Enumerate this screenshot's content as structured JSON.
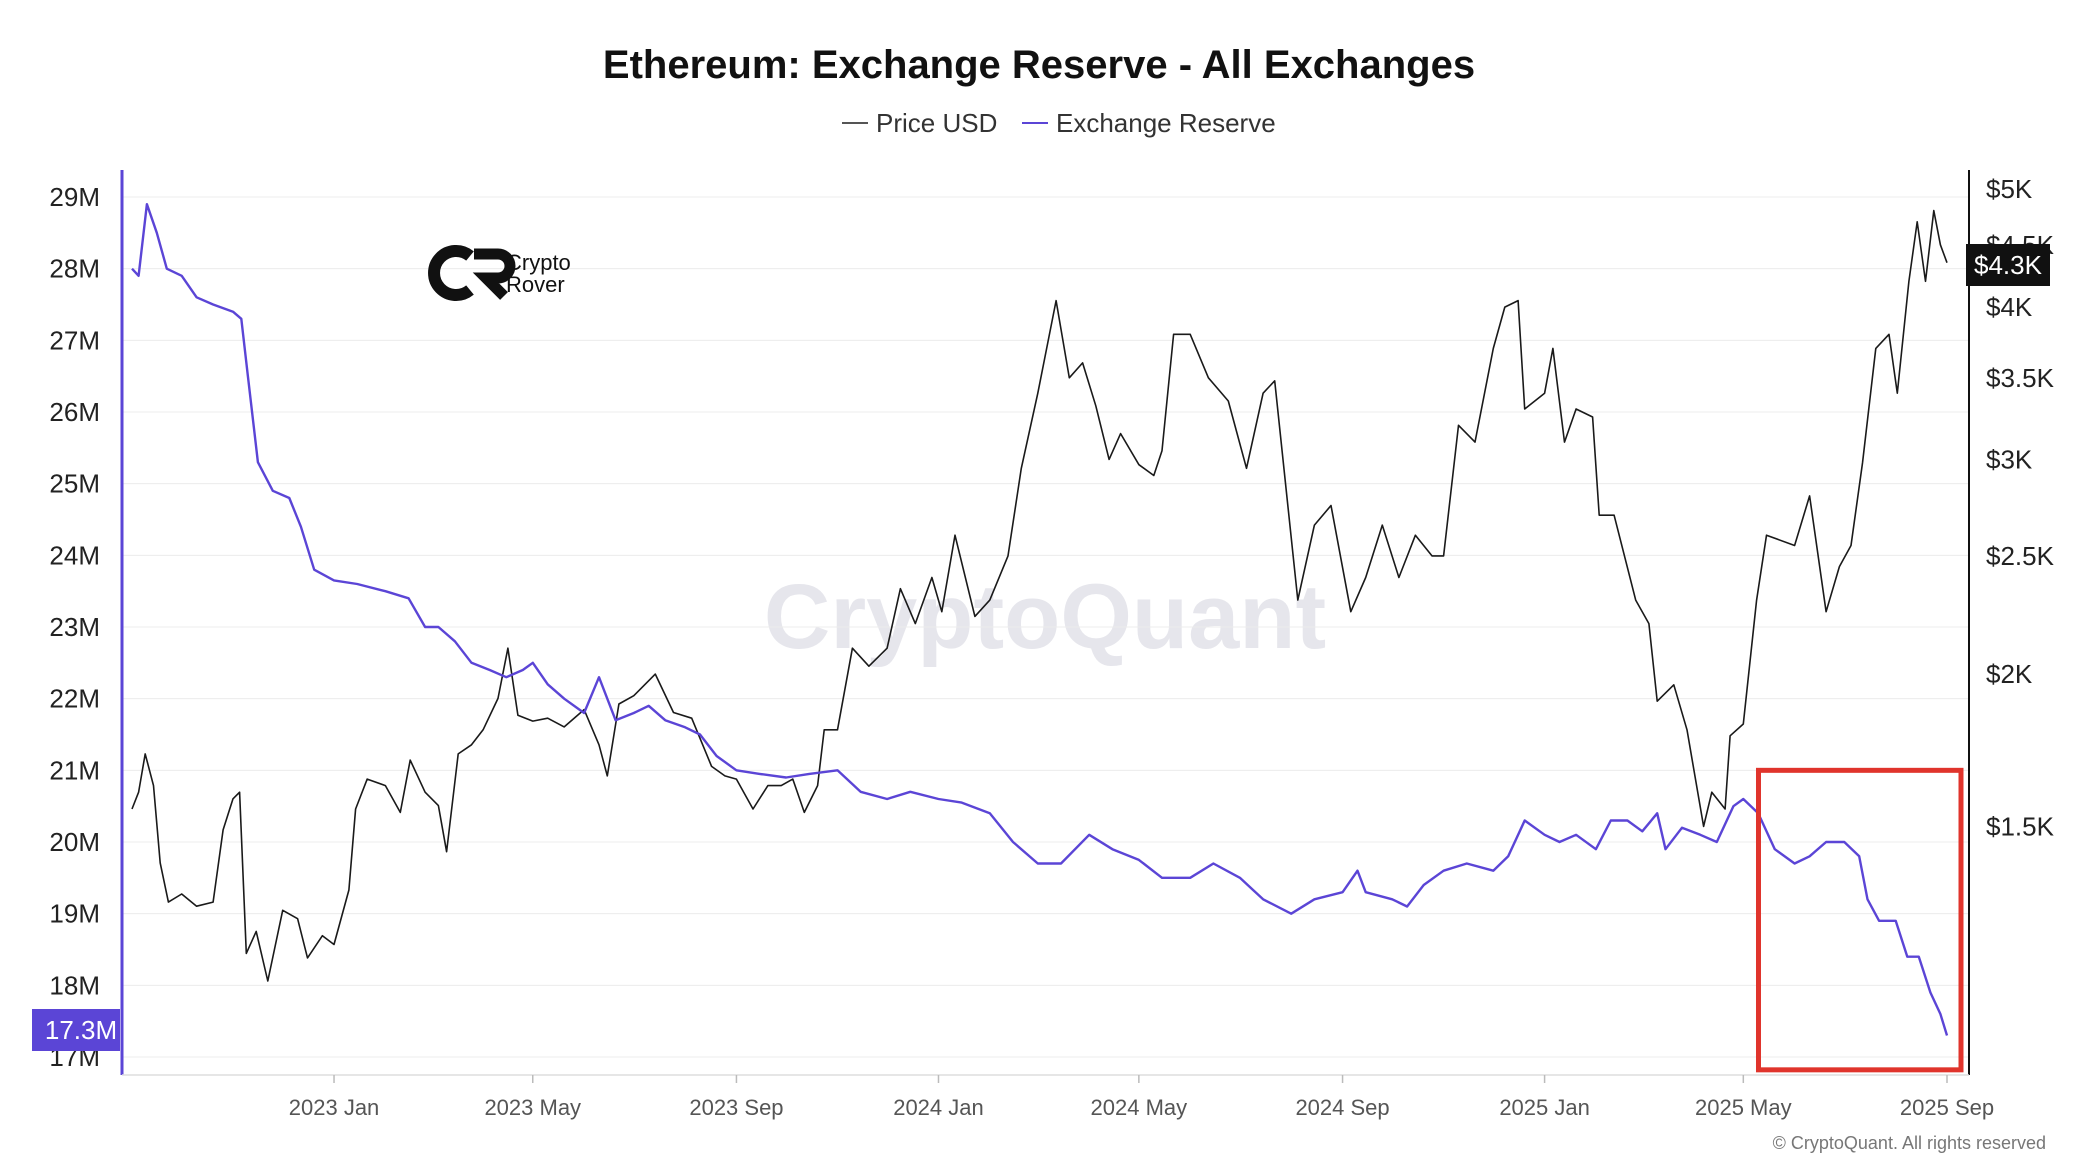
{
  "watermark": "CryptoQuant",
  "logo": {
    "line1": "Crypto",
    "line2": "Rover"
  },
  "copyright": "© CryptoQuant. All rights reserved",
  "colors": {
    "price": "#1a1a1a",
    "reserve": "#5b45d6",
    "highlight_box": "#e0342c",
    "grid": "#ececec",
    "badge_reserve": "#5b45d6",
    "badge_price": "#111111"
  },
  "chart_data": {
    "type": "line",
    "title": "Ethereum: Exchange Reserve - All Exchanges",
    "legend": {
      "placement": "top-center",
      "entries": [
        "Price USD",
        "Exchange Reserve"
      ]
    },
    "x": {
      "start": "2022-09-01",
      "end": "2025-09-01",
      "ticks": [
        "2023 Jan",
        "2023 May",
        "2023 Sep",
        "2024 Jan",
        "2024 May",
        "2024 Sep",
        "2025 Jan",
        "2025 May",
        "2025 Sep"
      ],
      "tick_dates": [
        "2023-01-01",
        "2023-05-01",
        "2023-09-01",
        "2024-01-01",
        "2024-05-01",
        "2024-09-01",
        "2025-01-01",
        "2025-05-01",
        "2025-09-01"
      ]
    },
    "y_left": {
      "label": "",
      "ylim": [
        17000000,
        29000000
      ],
      "ticks": [
        "17M",
        "18M",
        "19M",
        "20M",
        "21M",
        "22M",
        "23M",
        "24M",
        "25M",
        "26M",
        "27M",
        "28M",
        "29M"
      ],
      "tick_values": [
        17000000,
        18000000,
        19000000,
        20000000,
        21000000,
        22000000,
        23000000,
        24000000,
        25000000,
        26000000,
        27000000,
        28000000,
        29000000
      ]
    },
    "y_right": {
      "label": "",
      "scale": "log",
      "ylim": [
        1000,
        5000
      ],
      "ticks": [
        "$1.5K",
        "$2K",
        "$2.5K",
        "$3K",
        "$3.5K",
        "$4K",
        "$4.5K",
        "$5K"
      ],
      "tick_values": [
        1500,
        2000,
        2500,
        3000,
        3500,
        4000,
        4500,
        5000
      ]
    },
    "grid": true,
    "last_values": {
      "reserve": "17.3M",
      "price": "$4.3K"
    },
    "annotation": {
      "type": "highlight-rectangle",
      "x_range": [
        "2025-05-15",
        "2025-09-01"
      ],
      "y_range": [
        17100000,
        21000000
      ]
    },
    "series": [
      {
        "name": "Price USD",
        "axis": "right",
        "points": [
          [
            "2022-09-01",
            1550
          ],
          [
            "2022-09-05",
            1600
          ],
          [
            "2022-09-09",
            1720
          ],
          [
            "2022-09-14",
            1620
          ],
          [
            "2022-09-18",
            1400
          ],
          [
            "2022-09-23",
            1300
          ],
          [
            "2022-10-01",
            1320
          ],
          [
            "2022-10-10",
            1290
          ],
          [
            "2022-10-20",
            1300
          ],
          [
            "2022-10-26",
            1490
          ],
          [
            "2022-11-01",
            1580
          ],
          [
            "2022-11-05",
            1600
          ],
          [
            "2022-11-09",
            1180
          ],
          [
            "2022-11-15",
            1230
          ],
          [
            "2022-11-22",
            1120
          ],
          [
            "2022-12-01",
            1280
          ],
          [
            "2022-12-10",
            1260
          ],
          [
            "2022-12-16",
            1170
          ],
          [
            "2022-12-25",
            1220
          ],
          [
            "2023-01-01",
            1200
          ],
          [
            "2023-01-10",
            1330
          ],
          [
            "2023-01-14",
            1550
          ],
          [
            "2023-01-21",
            1640
          ],
          [
            "2023-02-01",
            1620
          ],
          [
            "2023-02-10",
            1540
          ],
          [
            "2023-02-16",
            1700
          ],
          [
            "2023-02-25",
            1600
          ],
          [
            "2023-03-05",
            1560
          ],
          [
            "2023-03-10",
            1430
          ],
          [
            "2023-03-17",
            1720
          ],
          [
            "2023-03-25",
            1750
          ],
          [
            "2023-04-01",
            1800
          ],
          [
            "2023-04-10",
            1910
          ],
          [
            "2023-04-16",
            2100
          ],
          [
            "2023-04-22",
            1850
          ],
          [
            "2023-05-01",
            1830
          ],
          [
            "2023-05-10",
            1840
          ],
          [
            "2023-05-20",
            1810
          ],
          [
            "2023-06-01",
            1870
          ],
          [
            "2023-06-10",
            1750
          ],
          [
            "2023-06-15",
            1650
          ],
          [
            "2023-06-22",
            1890
          ],
          [
            "2023-07-01",
            1920
          ],
          [
            "2023-07-14",
            2000
          ],
          [
            "2023-07-25",
            1860
          ],
          [
            "2023-08-05",
            1840
          ],
          [
            "2023-08-17",
            1680
          ],
          [
            "2023-08-25",
            1650
          ],
          [
            "2023-09-01",
            1640
          ],
          [
            "2023-09-11",
            1550
          ],
          [
            "2023-09-20",
            1620
          ],
          [
            "2023-09-28",
            1620
          ],
          [
            "2023-10-05",
            1640
          ],
          [
            "2023-10-12",
            1540
          ],
          [
            "2023-10-20",
            1620
          ],
          [
            "2023-10-24",
            1800
          ],
          [
            "2023-11-01",
            1800
          ],
          [
            "2023-11-10",
            2100
          ],
          [
            "2023-11-20",
            2030
          ],
          [
            "2023-12-01",
            2100
          ],
          [
            "2023-12-09",
            2350
          ],
          [
            "2023-12-18",
            2200
          ],
          [
            "2023-12-28",
            2400
          ],
          [
            "2024-01-03",
            2250
          ],
          [
            "2024-01-11",
            2600
          ],
          [
            "2024-01-23",
            2230
          ],
          [
            "2024-02-01",
            2300
          ],
          [
            "2024-02-12",
            2500
          ],
          [
            "2024-02-20",
            2950
          ],
          [
            "2024-03-01",
            3400
          ],
          [
            "2024-03-12",
            4050
          ],
          [
            "2024-03-20",
            3500
          ],
          [
            "2024-03-28",
            3600
          ],
          [
            "2024-04-05",
            3320
          ],
          [
            "2024-04-13",
            3000
          ],
          [
            "2024-04-20",
            3150
          ],
          [
            "2024-05-01",
            2970
          ],
          [
            "2024-05-10",
            2910
          ],
          [
            "2024-05-15",
            3050
          ],
          [
            "2024-05-22",
            3800
          ],
          [
            "2024-06-01",
            3800
          ],
          [
            "2024-06-12",
            3500
          ],
          [
            "2024-06-24",
            3350
          ],
          [
            "2024-07-05",
            2950
          ],
          [
            "2024-07-15",
            3400
          ],
          [
            "2024-07-22",
            3480
          ],
          [
            "2024-08-05",
            2300
          ],
          [
            "2024-08-15",
            2650
          ],
          [
            "2024-08-25",
            2750
          ],
          [
            "2024-09-06",
            2250
          ],
          [
            "2024-09-15",
            2400
          ],
          [
            "2024-09-25",
            2650
          ],
          [
            "2024-10-05",
            2400
          ],
          [
            "2024-10-15",
            2600
          ],
          [
            "2024-10-25",
            2500
          ],
          [
            "2024-11-01",
            2500
          ],
          [
            "2024-11-10",
            3200
          ],
          [
            "2024-11-20",
            3100
          ],
          [
            "2024-12-01",
            3700
          ],
          [
            "2024-12-08",
            4000
          ],
          [
            "2024-12-16",
            4050
          ],
          [
            "2024-12-20",
            3300
          ],
          [
            "2025-01-01",
            3400
          ],
          [
            "2025-01-06",
            3700
          ],
          [
            "2025-01-13",
            3100
          ],
          [
            "2025-01-20",
            3300
          ],
          [
            "2025-01-30",
            3250
          ],
          [
            "2025-02-03",
            2700
          ],
          [
            "2025-02-12",
            2700
          ],
          [
            "2025-02-25",
            2300
          ],
          [
            "2025-03-05",
            2200
          ],
          [
            "2025-03-10",
            1900
          ],
          [
            "2025-03-20",
            1960
          ],
          [
            "2025-03-28",
            1800
          ],
          [
            "2025-04-07",
            1500
          ],
          [
            "2025-04-12",
            1600
          ],
          [
            "2025-04-20",
            1550
          ],
          [
            "2025-04-23",
            1780
          ],
          [
            "2025-05-01",
            1820
          ],
          [
            "2025-05-09",
            2300
          ],
          [
            "2025-05-15",
            2600
          ],
          [
            "2025-06-01",
            2550
          ],
          [
            "2025-06-10",
            2800
          ],
          [
            "2025-06-20",
            2250
          ],
          [
            "2025-06-28",
            2450
          ],
          [
            "2025-07-05",
            2550
          ],
          [
            "2025-07-12",
            2980
          ],
          [
            "2025-07-20",
            3700
          ],
          [
            "2025-07-28",
            3800
          ],
          [
            "2025-08-02",
            3400
          ],
          [
            "2025-08-09",
            4200
          ],
          [
            "2025-08-14",
            4700
          ],
          [
            "2025-08-19",
            4200
          ],
          [
            "2025-08-24",
            4800
          ],
          [
            "2025-08-28",
            4500
          ],
          [
            "2025-09-01",
            4350
          ]
        ]
      },
      {
        "name": "Exchange Reserve",
        "axis": "left",
        "points": [
          [
            "2022-09-01",
            28000000
          ],
          [
            "2022-09-05",
            27900000
          ],
          [
            "2022-09-10",
            28900000
          ],
          [
            "2022-09-16",
            28500000
          ],
          [
            "2022-09-22",
            28000000
          ],
          [
            "2022-10-01",
            27900000
          ],
          [
            "2022-10-10",
            27600000
          ],
          [
            "2022-10-20",
            27500000
          ],
          [
            "2022-11-01",
            27400000
          ],
          [
            "2022-11-06",
            27300000
          ],
          [
            "2022-11-10",
            26500000
          ],
          [
            "2022-11-16",
            25300000
          ],
          [
            "2022-11-25",
            24900000
          ],
          [
            "2022-12-05",
            24800000
          ],
          [
            "2022-12-12",
            24400000
          ],
          [
            "2022-12-20",
            23800000
          ],
          [
            "2023-01-01",
            23650000
          ],
          [
            "2023-01-15",
            23600000
          ],
          [
            "2023-02-01",
            23500000
          ],
          [
            "2023-02-15",
            23400000
          ],
          [
            "2023-02-25",
            23000000
          ],
          [
            "2023-03-05",
            23000000
          ],
          [
            "2023-03-15",
            22800000
          ],
          [
            "2023-03-25",
            22500000
          ],
          [
            "2023-04-05",
            22400000
          ],
          [
            "2023-04-15",
            22300000
          ],
          [
            "2023-04-25",
            22400000
          ],
          [
            "2023-05-01",
            22500000
          ],
          [
            "2023-05-10",
            22200000
          ],
          [
            "2023-05-20",
            22000000
          ],
          [
            "2023-06-01",
            21800000
          ],
          [
            "2023-06-10",
            22300000
          ],
          [
            "2023-06-20",
            21700000
          ],
          [
            "2023-07-01",
            21800000
          ],
          [
            "2023-07-10",
            21900000
          ],
          [
            "2023-07-20",
            21700000
          ],
          [
            "2023-08-01",
            21600000
          ],
          [
            "2023-08-10",
            21500000
          ],
          [
            "2023-08-20",
            21200000
          ],
          [
            "2023-09-01",
            21000000
          ],
          [
            "2023-09-15",
            20950000
          ],
          [
            "2023-10-01",
            20900000
          ],
          [
            "2023-10-15",
            20950000
          ],
          [
            "2023-11-01",
            21000000
          ],
          [
            "2023-11-15",
            20700000
          ],
          [
            "2023-12-01",
            20600000
          ],
          [
            "2023-12-15",
            20700000
          ],
          [
            "2024-01-01",
            20600000
          ],
          [
            "2024-01-15",
            20550000
          ],
          [
            "2024-02-01",
            20400000
          ],
          [
            "2024-02-15",
            20000000
          ],
          [
            "2024-03-01",
            19700000
          ],
          [
            "2024-03-15",
            19700000
          ],
          [
            "2024-04-01",
            20100000
          ],
          [
            "2024-04-15",
            19900000
          ],
          [
            "2024-05-01",
            19750000
          ],
          [
            "2024-05-15",
            19500000
          ],
          [
            "2024-06-01",
            19500000
          ],
          [
            "2024-06-15",
            19700000
          ],
          [
            "2024-07-01",
            19500000
          ],
          [
            "2024-07-15",
            19200000
          ],
          [
            "2024-08-01",
            19000000
          ],
          [
            "2024-08-15",
            19200000
          ],
          [
            "2024-09-01",
            19300000
          ],
          [
            "2024-09-10",
            19600000
          ],
          [
            "2024-09-15",
            19300000
          ],
          [
            "2024-10-01",
            19200000
          ],
          [
            "2024-10-10",
            19100000
          ],
          [
            "2024-10-20",
            19400000
          ],
          [
            "2024-11-01",
            19600000
          ],
          [
            "2024-11-15",
            19700000
          ],
          [
            "2024-12-01",
            19600000
          ],
          [
            "2024-12-10",
            19800000
          ],
          [
            "2024-12-20",
            20300000
          ],
          [
            "2025-01-01",
            20100000
          ],
          [
            "2025-01-10",
            20000000
          ],
          [
            "2025-01-20",
            20100000
          ],
          [
            "2025-02-01",
            19900000
          ],
          [
            "2025-02-10",
            20300000
          ],
          [
            "2025-02-20",
            20300000
          ],
          [
            "2025-03-01",
            20150000
          ],
          [
            "2025-03-10",
            20400000
          ],
          [
            "2025-03-15",
            19900000
          ],
          [
            "2025-03-25",
            20200000
          ],
          [
            "2025-04-05",
            20100000
          ],
          [
            "2025-04-15",
            20000000
          ],
          [
            "2025-04-25",
            20500000
          ],
          [
            "2025-05-01",
            20600000
          ],
          [
            "2025-05-10",
            20400000
          ],
          [
            "2025-05-20",
            19900000
          ],
          [
            "2025-06-01",
            19700000
          ],
          [
            "2025-06-10",
            19800000
          ],
          [
            "2025-06-20",
            20000000
          ],
          [
            "2025-07-01",
            20000000
          ],
          [
            "2025-07-10",
            19800000
          ],
          [
            "2025-07-15",
            19200000
          ],
          [
            "2025-07-22",
            18900000
          ],
          [
            "2025-08-01",
            18900000
          ],
          [
            "2025-08-08",
            18400000
          ],
          [
            "2025-08-15",
            18400000
          ],
          [
            "2025-08-22",
            17900000
          ],
          [
            "2025-08-28",
            17600000
          ],
          [
            "2025-09-01",
            17300000
          ]
        ]
      }
    ]
  }
}
